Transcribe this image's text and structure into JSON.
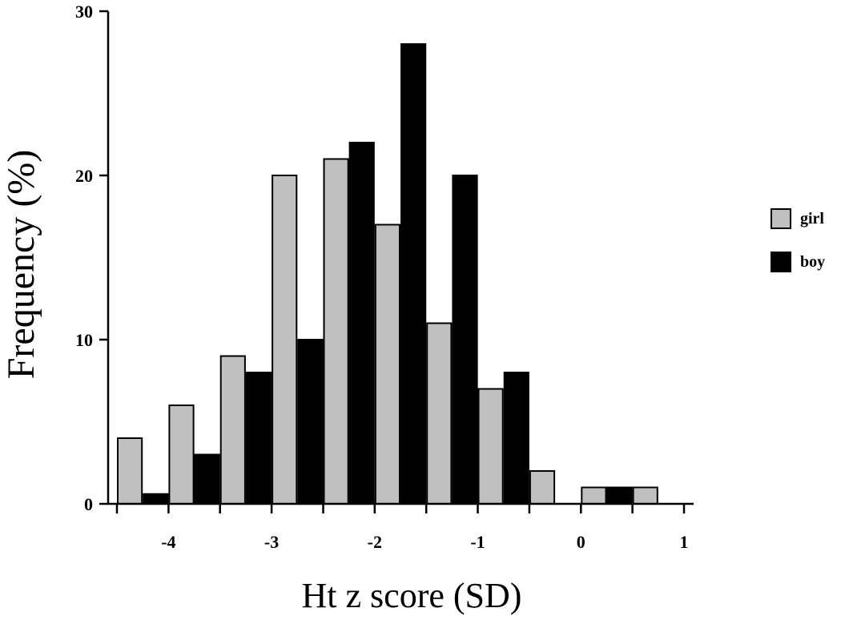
{
  "chart_data": {
    "type": "bar",
    "title": "",
    "xlabel": "Ht z score (SD)",
    "ylabel": "Frequency (%)",
    "ylim": [
      0,
      30
    ],
    "yticks": [
      "0",
      "10",
      "20",
      "30"
    ],
    "xlim": [
      -4.5,
      1
    ],
    "xticks": [
      {
        "value": -4,
        "label": "-4"
      },
      {
        "value": -3,
        "label": "-3"
      },
      {
        "value": -2,
        "label": "-2"
      },
      {
        "value": -1,
        "label": "-1"
      },
      {
        "value": 0,
        "label": "0"
      },
      {
        "value": 1,
        "label": "1"
      }
    ],
    "bin_edges": [
      -4.5,
      -4.0,
      -3.5,
      -3.0,
      -2.5,
      -2.0,
      -1.5,
      -1.0,
      -0.5,
      0.0,
      0.5,
      1.0
    ],
    "series": [
      {
        "name": "girl",
        "color": "#c0c0c0",
        "values": [
          4,
          6,
          9,
          20,
          21,
          17,
          11,
          7,
          2,
          1,
          1
        ]
      },
      {
        "name": "boy",
        "color": "#000000",
        "values": [
          0.6,
          3,
          8,
          10,
          22,
          28,
          20,
          8,
          0,
          1,
          0
        ]
      }
    ],
    "legend_position": "right",
    "grid": false
  }
}
